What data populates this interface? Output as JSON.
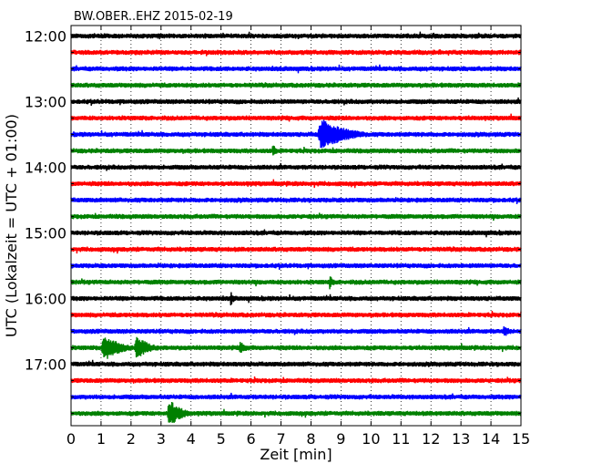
{
  "chart_data": {
    "type": "line",
    "title": "BW.OBER..EHZ 2015-02-19",
    "xlabel": "Zeit  [min]",
    "ylabel": "UTC (Lokalzeit = UTC + 01:00)",
    "xlim": [
      0,
      15
    ],
    "x_ticks": [
      "0",
      "1",
      "2",
      "3",
      "4",
      "5",
      "6",
      "7",
      "8",
      "9",
      "10",
      "11",
      "12",
      "13",
      "14",
      "15"
    ],
    "y_tick_labels": [
      "12:00",
      "13:00",
      "14:00",
      "15:00",
      "16:00",
      "17:00"
    ],
    "row_start": "12:00",
    "row_interval_min": 15,
    "row_count": 24,
    "grid": "vertical dotted at each minute",
    "trace_colors": [
      "#000000",
      "#ff0000",
      "#0000ff",
      "#008000"
    ],
    "events": [
      {
        "row": 6,
        "start_min": 8.2,
        "duration_min": 1.8,
        "amplitude": 1.0
      },
      {
        "row": 19,
        "start_min": 1.0,
        "duration_min": 1.2,
        "amplitude": 0.85
      },
      {
        "row": 19,
        "start_min": 2.1,
        "duration_min": 1.0,
        "amplitude": 0.75
      },
      {
        "row": 19,
        "start_min": 5.6,
        "duration_min": 0.5,
        "amplitude": 0.45
      },
      {
        "row": 23,
        "start_min": 3.2,
        "duration_min": 0.9,
        "amplitude": 0.9
      },
      {
        "row": 18,
        "start_min": 14.4,
        "duration_min": 0.4,
        "amplitude": 0.45
      },
      {
        "row": 15,
        "start_min": 8.6,
        "duration_min": 0.3,
        "amplitude": 0.45
      },
      {
        "row": 7,
        "start_min": 6.7,
        "duration_min": 0.3,
        "amplitude": 0.45
      },
      {
        "row": 16,
        "start_min": 5.3,
        "duration_min": 0.3,
        "amplitude": 0.45
      }
    ]
  }
}
